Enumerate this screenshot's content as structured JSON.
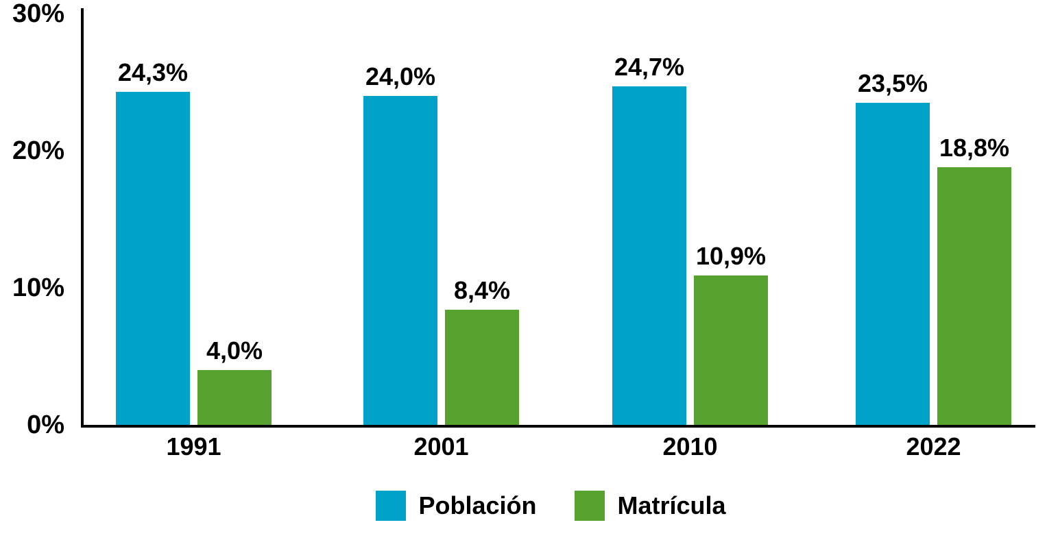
{
  "chart_data": {
    "type": "bar",
    "title": "",
    "xlabel": "",
    "ylabel": "",
    "categories": [
      "1991",
      "2001",
      "2010",
      "2022"
    ],
    "series": [
      {
        "name": "Población",
        "color": "#00A2C8",
        "values": [
          24.3,
          24.0,
          24.7,
          23.5
        ],
        "labels": [
          "24,3%",
          "24,0%",
          "24,7%",
          "23,5%"
        ]
      },
      {
        "name": "Matrícula",
        "color": "#55A32E",
        "values": [
          4.0,
          8.4,
          10.9,
          18.8
        ],
        "labels": [
          "4,0%",
          "8,4%",
          "10,9%",
          "18,8%"
        ]
      }
    ],
    "y_axis": {
      "min": 0,
      "max": 30,
      "ticks": [
        0,
        10,
        20,
        30
      ],
      "tick_labels": [
        "0%",
        "10%",
        "20%",
        "30%"
      ]
    },
    "grid": false,
    "value_labels_shown": true,
    "decimal_separator": ",",
    "legend_position": "bottom",
    "colors": {
      "axis": "#000000",
      "text": "#000000",
      "background": "#FFFFFF"
    }
  }
}
